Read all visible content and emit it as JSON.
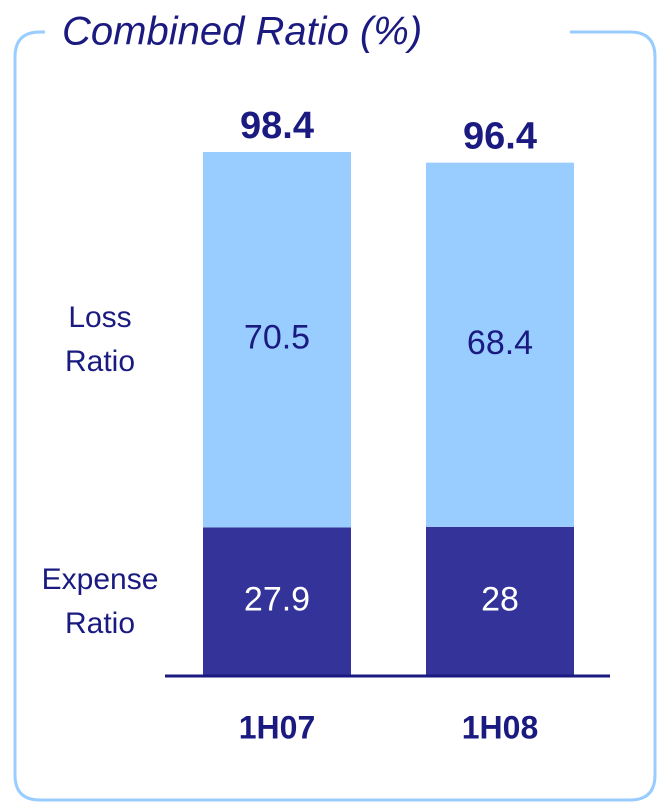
{
  "chart_data": {
    "type": "stacked_bar",
    "title": "Combined Ratio (%)",
    "categories": [
      "1H07",
      "1H08"
    ],
    "series": [
      {
        "name": "Expense Ratio",
        "color": "#333399",
        "values": [
          27.9,
          28.0
        ]
      },
      {
        "name": "Loss Ratio",
        "color": "#99ccff",
        "values": [
          70.5,
          68.4
        ]
      }
    ],
    "totals": [
      98.4,
      96.4
    ]
  }
}
